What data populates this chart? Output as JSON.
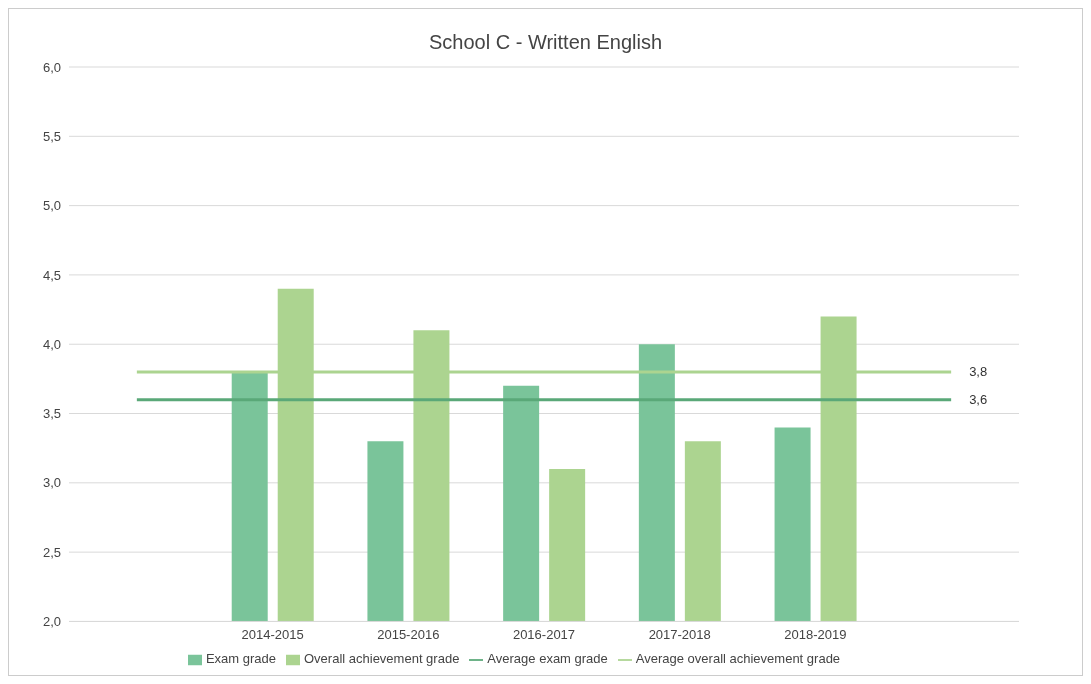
{
  "chart_data": {
    "type": "bar",
    "title": "School C - Written English",
    "categories": [
      null,
      "2014-2015",
      "2015-2016",
      "2016-2017",
      "2017-2018",
      "2018-2019",
      null
    ],
    "series": [
      {
        "name": "Exam grade",
        "color": "#7ac49a",
        "values": [
          null,
          3.8,
          3.3,
          3.7,
          4.0,
          3.4,
          null
        ]
      },
      {
        "name": "Overall achievement grade",
        "color": "#acd490",
        "values": [
          null,
          4.4,
          4.1,
          3.1,
          3.3,
          4.2,
          null
        ]
      },
      {
        "name": "Average exam grade",
        "type": "line",
        "color": "#5aa878",
        "values": [
          3.6,
          3.6,
          3.6,
          3.6,
          3.6,
          3.6,
          3.6
        ],
        "value_labels": [
          null,
          null,
          null,
          null,
          null,
          null,
          "3,6"
        ]
      },
      {
        "name": "Average overall achievement grade",
        "type": "line",
        "color": "#acd490",
        "values": [
          3.8,
          3.8,
          3.8,
          3.8,
          3.8,
          3.8,
          3.8
        ],
        "value_labels": [
          null,
          null,
          null,
          null,
          null,
          null,
          "3,8"
        ]
      }
    ],
    "ylim": [
      2,
      6
    ],
    "yticks": [
      {
        "value": 2,
        "label": "2,0"
      },
      {
        "value": 2.5,
        "label": "2,5"
      },
      {
        "value": 3,
        "label": "3,0"
      },
      {
        "value": 3.5,
        "label": "3,5"
      },
      {
        "value": 4,
        "label": "4,0"
      },
      {
        "value": 4.5,
        "label": "4,5"
      },
      {
        "value": 5,
        "label": "5,0"
      },
      {
        "value": 5.5,
        "label": "5,5"
      },
      {
        "value": 6,
        "label": "6,0"
      }
    ],
    "grid": "y",
    "legend": "bottom",
    "marker": "none"
  }
}
